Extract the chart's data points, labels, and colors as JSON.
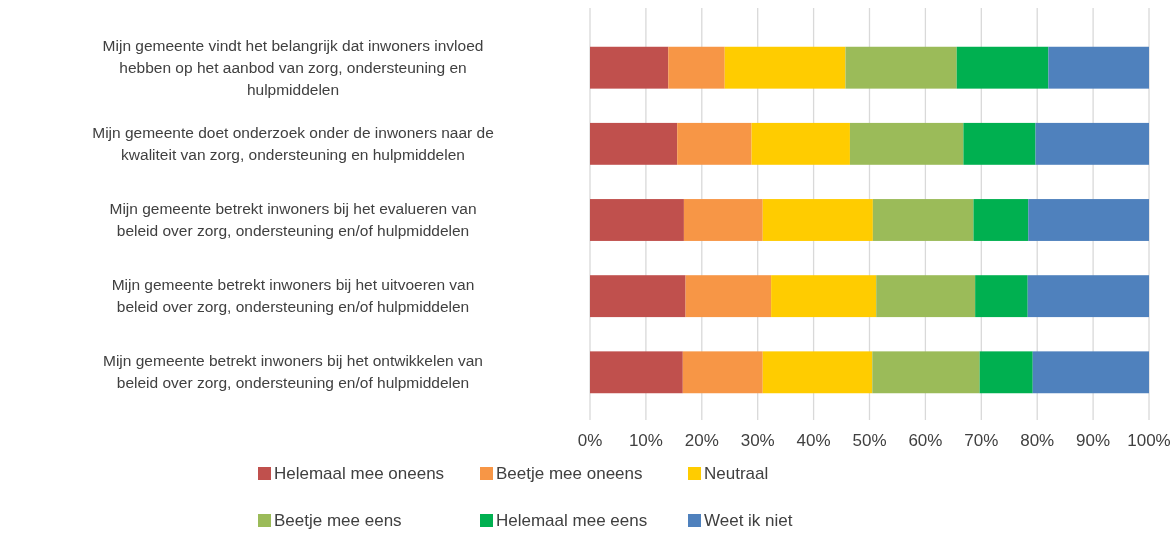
{
  "chart_data": {
    "type": "bar",
    "orientation": "horizontal",
    "stacked": true,
    "categories": [
      "Mijn gemeente vindt het belangrijk dat inwoners invloed hebben op het aanbod van zorg, ondersteuning en hulpmiddelen",
      "Mijn gemeente doet onderzoek onder de inwoners naar de kwaliteit van zorg, ondersteuning en hulpmiddelen",
      "Mijn gemeente betrekt inwoners bij het evalueren van beleid over zorg, ondersteuning en/of hulpmiddelen",
      "Mijn gemeente betrekt inwoners bij het uitvoeren van beleid over zorg, ondersteuning en/of hulpmiddelen",
      "Mijn gemeente betrekt inwoners bij het ontwikkelen van beleid over zorg, ondersteuning en/of hulpmiddelen"
    ],
    "series": [
      {
        "name": "Helemaal mee oneens",
        "color": "#c0504d",
        "values": [
          14.0,
          15.6,
          16.8,
          17.1,
          16.6
        ]
      },
      {
        "name": "Beetje mee oneens",
        "color": "#f79646",
        "values": [
          10.1,
          13.3,
          14.1,
          15.3,
          14.3
        ]
      },
      {
        "name": "Neutraal",
        "color": "#ffcc00",
        "values": [
          21.6,
          17.6,
          19.7,
          18.8,
          19.6
        ]
      },
      {
        "name": "Beetje mee eens",
        "color": "#9bbb59",
        "values": [
          19.9,
          20.3,
          18.0,
          17.7,
          19.2
        ]
      },
      {
        "name": "Helemaal mee eens",
        "color": "#00b050",
        "values": [
          16.4,
          12.9,
          9.8,
          9.4,
          9.5
        ]
      },
      {
        "name": "Weet ik niet",
        "color": "#4f81bd",
        "values": [
          18.0,
          20.3,
          21.6,
          21.7,
          20.8
        ]
      }
    ],
    "xlim": [
      0,
      100
    ],
    "xticks": [
      {
        "value": 0,
        "label": "0%"
      },
      {
        "value": 10,
        "label": "10%"
      },
      {
        "value": 20,
        "label": "20%"
      },
      {
        "value": 30,
        "label": "30%"
      },
      {
        "value": 40,
        "label": "40%"
      },
      {
        "value": 50,
        "label": "50%"
      },
      {
        "value": 60,
        "label": "60%"
      },
      {
        "value": 70,
        "label": "70%"
      },
      {
        "value": 80,
        "label": "80%"
      },
      {
        "value": 90,
        "label": "90%"
      },
      {
        "value": 100,
        "label": "100%"
      }
    ],
    "grid": "x",
    "legend": "bottom"
  }
}
